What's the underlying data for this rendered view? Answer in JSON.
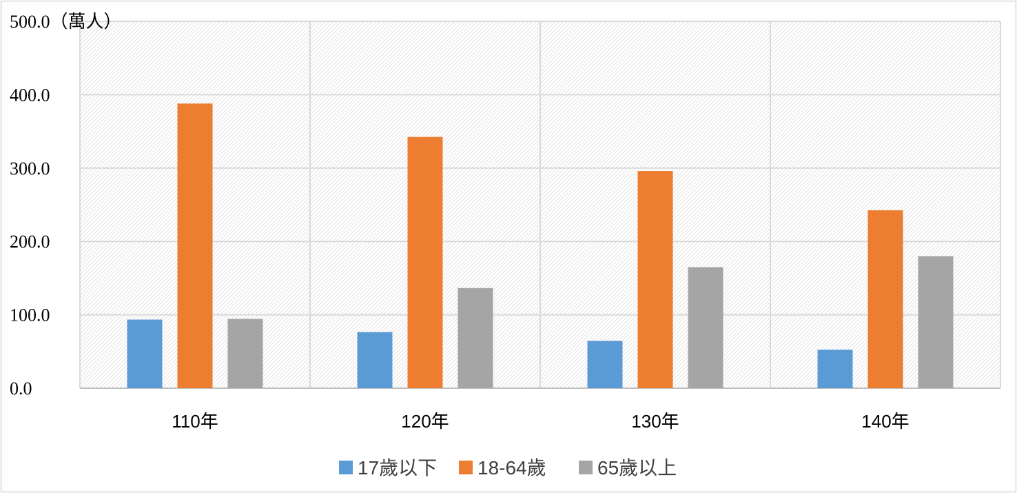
{
  "chart_data": {
    "type": "bar",
    "y_unit_label": "500.0（萬人）",
    "categories": [
      "110年",
      "120年",
      "130年",
      "140年"
    ],
    "series": [
      {
        "name": "17歲以下",
        "color": "#5b9bd5",
        "values": [
          93.5,
          76.5,
          64.5,
          52.5
        ]
      },
      {
        "name": "18-64歲",
        "color": "#ed7d31",
        "values": [
          388.0,
          342.5,
          296.0,
          242.5
        ]
      },
      {
        "name": "65歲以上",
        "color": "#a5a5a5",
        "values": [
          94.5,
          136.5,
          165.0,
          180.0
        ]
      }
    ],
    "y_ticks": [
      "0.0",
      "100.0",
      "200.0",
      "300.0",
      "400.0"
    ],
    "ylim": [
      0,
      500
    ],
    "grid": true,
    "plot_background": "hatched",
    "legend_position": "bottom"
  }
}
